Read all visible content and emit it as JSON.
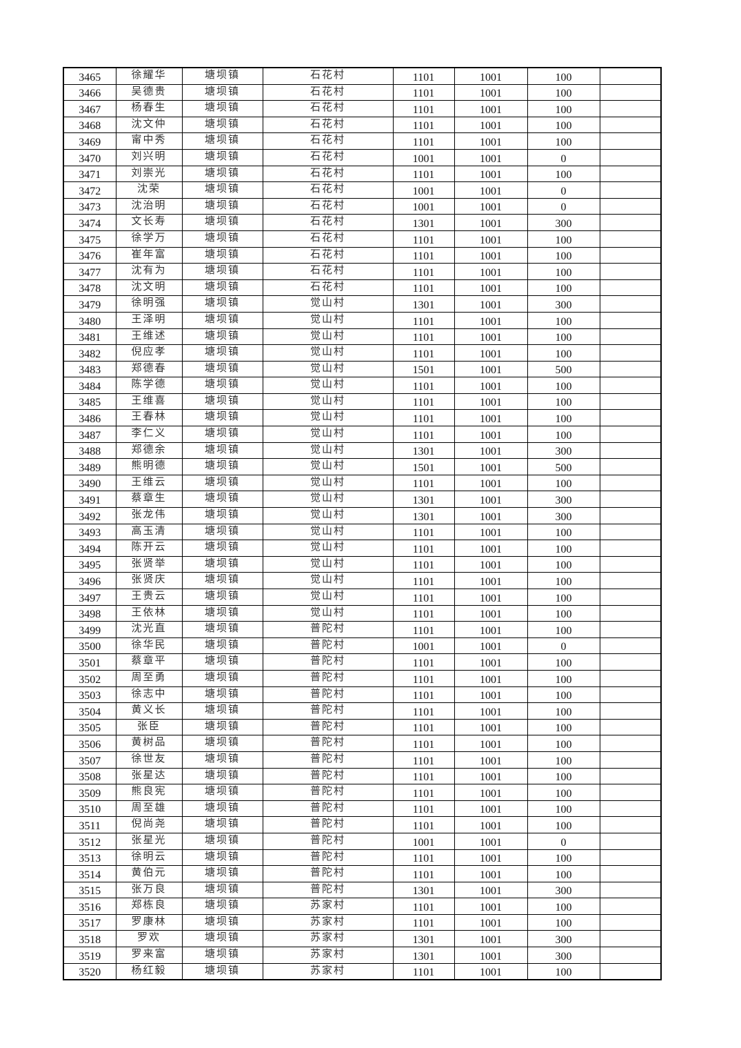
{
  "table": {
    "columns": [
      "id",
      "name",
      "town",
      "village",
      "code_a",
      "code_b",
      "amount",
      "remark"
    ],
    "rows": [
      [
        "3465",
        "徐耀华",
        "塘坝镇",
        "石花村",
        "1101",
        "1001",
        "100",
        ""
      ],
      [
        "3466",
        "吴德贵",
        "塘坝镇",
        "石花村",
        "1101",
        "1001",
        "100",
        ""
      ],
      [
        "3467",
        "杨春生",
        "塘坝镇",
        "石花村",
        "1101",
        "1001",
        "100",
        ""
      ],
      [
        "3468",
        "沈文仲",
        "塘坝镇",
        "石花村",
        "1101",
        "1001",
        "100",
        ""
      ],
      [
        "3469",
        "甯中秀",
        "塘坝镇",
        "石花村",
        "1101",
        "1001",
        "100",
        ""
      ],
      [
        "3470",
        "刘兴明",
        "塘坝镇",
        "石花村",
        "1001",
        "1001",
        "0",
        ""
      ],
      [
        "3471",
        "刘崇光",
        "塘坝镇",
        "石花村",
        "1101",
        "1001",
        "100",
        ""
      ],
      [
        "3472",
        "沈荣",
        "塘坝镇",
        "石花村",
        "1001",
        "1001",
        "0",
        ""
      ],
      [
        "3473",
        "沈治明",
        "塘坝镇",
        "石花村",
        "1001",
        "1001",
        "0",
        ""
      ],
      [
        "3474",
        "文长寿",
        "塘坝镇",
        "石花村",
        "1301",
        "1001",
        "300",
        ""
      ],
      [
        "3475",
        "徐学万",
        "塘坝镇",
        "石花村",
        "1101",
        "1001",
        "100",
        ""
      ],
      [
        "3476",
        "崔年富",
        "塘坝镇",
        "石花村",
        "1101",
        "1001",
        "100",
        ""
      ],
      [
        "3477",
        "沈有为",
        "塘坝镇",
        "石花村",
        "1101",
        "1001",
        "100",
        ""
      ],
      [
        "3478",
        "沈文明",
        "塘坝镇",
        "石花村",
        "1101",
        "1001",
        "100",
        ""
      ],
      [
        "3479",
        "徐明强",
        "塘坝镇",
        "觉山村",
        "1301",
        "1001",
        "300",
        ""
      ],
      [
        "3480",
        "王泽明",
        "塘坝镇",
        "觉山村",
        "1101",
        "1001",
        "100",
        ""
      ],
      [
        "3481",
        "王维述",
        "塘坝镇",
        "觉山村",
        "1101",
        "1001",
        "100",
        ""
      ],
      [
        "3482",
        "倪应孝",
        "塘坝镇",
        "觉山村",
        "1101",
        "1001",
        "100",
        ""
      ],
      [
        "3483",
        "郑德春",
        "塘坝镇",
        "觉山村",
        "1501",
        "1001",
        "500",
        ""
      ],
      [
        "3484",
        "陈学德",
        "塘坝镇",
        "觉山村",
        "1101",
        "1001",
        "100",
        ""
      ],
      [
        "3485",
        "王维喜",
        "塘坝镇",
        "觉山村",
        "1101",
        "1001",
        "100",
        ""
      ],
      [
        "3486",
        "王春林",
        "塘坝镇",
        "觉山村",
        "1101",
        "1001",
        "100",
        ""
      ],
      [
        "3487",
        "李仁义",
        "塘坝镇",
        "觉山村",
        "1101",
        "1001",
        "100",
        ""
      ],
      [
        "3488",
        "郑德余",
        "塘坝镇",
        "觉山村",
        "1301",
        "1001",
        "300",
        ""
      ],
      [
        "3489",
        "熊明德",
        "塘坝镇",
        "觉山村",
        "1501",
        "1001",
        "500",
        ""
      ],
      [
        "3490",
        "王维云",
        "塘坝镇",
        "觉山村",
        "1101",
        "1001",
        "100",
        ""
      ],
      [
        "3491",
        "蔡章生",
        "塘坝镇",
        "觉山村",
        "1301",
        "1001",
        "300",
        ""
      ],
      [
        "3492",
        "张龙伟",
        "塘坝镇",
        "觉山村",
        "1301",
        "1001",
        "300",
        ""
      ],
      [
        "3493",
        "高玉清",
        "塘坝镇",
        "觉山村",
        "1101",
        "1001",
        "100",
        ""
      ],
      [
        "3494",
        "陈开云",
        "塘坝镇",
        "觉山村",
        "1101",
        "1001",
        "100",
        ""
      ],
      [
        "3495",
        "张贤举",
        "塘坝镇",
        "觉山村",
        "1101",
        "1001",
        "100",
        ""
      ],
      [
        "3496",
        "张贤庆",
        "塘坝镇",
        "觉山村",
        "1101",
        "1001",
        "100",
        ""
      ],
      [
        "3497",
        "王贵云",
        "塘坝镇",
        "觉山村",
        "1101",
        "1001",
        "100",
        ""
      ],
      [
        "3498",
        "王依林",
        "塘坝镇",
        "觉山村",
        "1101",
        "1001",
        "100",
        ""
      ],
      [
        "3499",
        "沈光直",
        "塘坝镇",
        "普陀村",
        "1101",
        "1001",
        "100",
        ""
      ],
      [
        "3500",
        "徐华民",
        "塘坝镇",
        "普陀村",
        "1001",
        "1001",
        "0",
        ""
      ],
      [
        "3501",
        "蔡章平",
        "塘坝镇",
        "普陀村",
        "1101",
        "1001",
        "100",
        ""
      ],
      [
        "3502",
        "周至勇",
        "塘坝镇",
        "普陀村",
        "1101",
        "1001",
        "100",
        ""
      ],
      [
        "3503",
        "徐志中",
        "塘坝镇",
        "普陀村",
        "1101",
        "1001",
        "100",
        ""
      ],
      [
        "3504",
        "黄义长",
        "塘坝镇",
        "普陀村",
        "1101",
        "1001",
        "100",
        ""
      ],
      [
        "3505",
        "张臣",
        "塘坝镇",
        "普陀村",
        "1101",
        "1001",
        "100",
        ""
      ],
      [
        "3506",
        "黄树品",
        "塘坝镇",
        "普陀村",
        "1101",
        "1001",
        "100",
        ""
      ],
      [
        "3507",
        "徐世友",
        "塘坝镇",
        "普陀村",
        "1101",
        "1001",
        "100",
        ""
      ],
      [
        "3508",
        "张星达",
        "塘坝镇",
        "普陀村",
        "1101",
        "1001",
        "100",
        ""
      ],
      [
        "3509",
        "熊良宪",
        "塘坝镇",
        "普陀村",
        "1101",
        "1001",
        "100",
        ""
      ],
      [
        "3510",
        "周至雄",
        "塘坝镇",
        "普陀村",
        "1101",
        "1001",
        "100",
        ""
      ],
      [
        "3511",
        "倪尚尧",
        "塘坝镇",
        "普陀村",
        "1101",
        "1001",
        "100",
        ""
      ],
      [
        "3512",
        "张星光",
        "塘坝镇",
        "普陀村",
        "1001",
        "1001",
        "0",
        ""
      ],
      [
        "3513",
        "徐明云",
        "塘坝镇",
        "普陀村",
        "1101",
        "1001",
        "100",
        ""
      ],
      [
        "3514",
        "黄伯元",
        "塘坝镇",
        "普陀村",
        "1101",
        "1001",
        "100",
        ""
      ],
      [
        "3515",
        "张万良",
        "塘坝镇",
        "普陀村",
        "1301",
        "1001",
        "300",
        ""
      ],
      [
        "3516",
        "郑栋良",
        "塘坝镇",
        "苏家村",
        "1101",
        "1001",
        "100",
        ""
      ],
      [
        "3517",
        "罗康林",
        "塘坝镇",
        "苏家村",
        "1101",
        "1001",
        "100",
        ""
      ],
      [
        "3518",
        "罗欢",
        "塘坝镇",
        "苏家村",
        "1301",
        "1001",
        "300",
        ""
      ],
      [
        "3519",
        "罗来富",
        "塘坝镇",
        "苏家村",
        "1301",
        "1001",
        "300",
        ""
      ],
      [
        "3520",
        "杨红毅",
        "塘坝镇",
        "苏家村",
        "1101",
        "1001",
        "100",
        ""
      ]
    ]
  }
}
